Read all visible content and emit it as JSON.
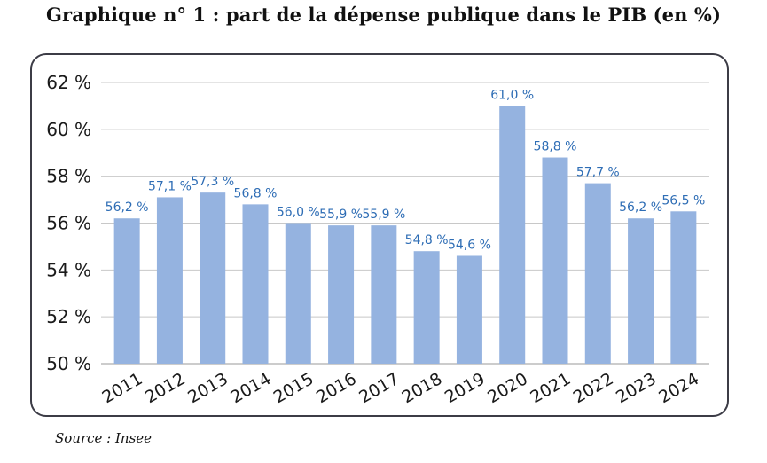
{
  "header": {
    "title": "Graphique n° 1 : part de la dépense publique dans le PIB (en %)"
  },
  "footer": {
    "source": "Source : Insee"
  },
  "colors": {
    "bar": "#95b3e0",
    "data_label": "#2e6db5",
    "grid": "#c8c8c8",
    "frame": "#3c3c46"
  },
  "chart_data": {
    "type": "bar",
    "title": "Graphique n° 1 : part de la dépense publique dans le PIB (en %)",
    "xlabel": "",
    "ylabel": "",
    "categories": [
      "2011",
      "2012",
      "2013",
      "2014",
      "2015",
      "2016",
      "2017",
      "2018",
      "2019",
      "2020",
      "2021",
      "2022",
      "2023",
      "2024"
    ],
    "values": [
      56.2,
      57.1,
      57.3,
      56.8,
      56.0,
      55.9,
      55.9,
      54.8,
      54.6,
      61.0,
      58.8,
      57.7,
      56.2,
      56.5
    ],
    "data_labels": [
      "56,2 %",
      "57,1 %",
      "57,3 %",
      "56,8 %",
      "56,0 %",
      "55,9 %",
      "55,9 %",
      "54,8 %",
      "54,6 %",
      "61,0 %",
      "58,8 %",
      "57,7 %",
      "56,2 %",
      "56,5 %"
    ],
    "ylim": [
      50,
      62
    ],
    "yticks": [
      50,
      52,
      54,
      56,
      58,
      60,
      62
    ],
    "ytick_labels": [
      "50 %",
      "52 %",
      "54 %",
      "56 %",
      "58 %",
      "60 %",
      "62 %"
    ],
    "grid": true,
    "legend": "none"
  }
}
